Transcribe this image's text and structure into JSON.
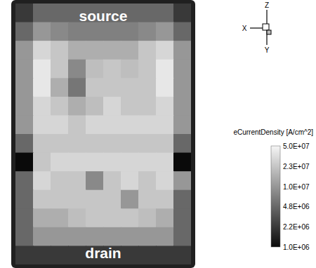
{
  "chart_data": {
    "type": "heatmap",
    "annotations": [
      "source",
      "drain"
    ],
    "axes_triad": [
      "X",
      "Y",
      "Z"
    ],
    "colorbar": {
      "title": "eCurrentDensity [A/cm^2]",
      "range": [
        1000000,
        50000000
      ],
      "ticks": [
        {
          "value": 50000000,
          "label": "5.0E+07"
        },
        {
          "value": 23000000,
          "label": "2.3E+07"
        },
        {
          "value": 10000000,
          "label": "1.0E+07"
        },
        {
          "value": 4800000,
          "label": "4.8E+06"
        },
        {
          "value": 2200000,
          "label": "2.2E+06"
        },
        {
          "value": 1000000,
          "label": "1.0E+06"
        }
      ]
    },
    "cells": [
      [
        2200000,
        4800000,
        4800000,
        4800000,
        4800000,
        4800000,
        4800000,
        4800000,
        4800000,
        2200000
      ],
      [
        4800000,
        10000000,
        8000000,
        7000000,
        7000000,
        7000000,
        7000000,
        8000000,
        10000000,
        4800000
      ],
      [
        10000000,
        30000000,
        23000000,
        15000000,
        15000000,
        15000000,
        15000000,
        23000000,
        30000000,
        10000000
      ],
      [
        10000000,
        40000000,
        23000000,
        8000000,
        20000000,
        23000000,
        20000000,
        23000000,
        40000000,
        10000000
      ],
      [
        10000000,
        40000000,
        15000000,
        6000000,
        23000000,
        23000000,
        23000000,
        23000000,
        40000000,
        10000000
      ],
      [
        10000000,
        30000000,
        23000000,
        15000000,
        20000000,
        30000000,
        23000000,
        23000000,
        30000000,
        10000000
      ],
      [
        10000000,
        30000000,
        30000000,
        23000000,
        30000000,
        30000000,
        30000000,
        30000000,
        30000000,
        10000000
      ],
      [
        4800000,
        23000000,
        23000000,
        23000000,
        23000000,
        23000000,
        23000000,
        23000000,
        23000000,
        4800000
      ],
      [
        1000000,
        23000000,
        30000000,
        30000000,
        30000000,
        30000000,
        30000000,
        30000000,
        30000000,
        1000000
      ],
      [
        4800000,
        30000000,
        23000000,
        23000000,
        8000000,
        23000000,
        30000000,
        23000000,
        30000000,
        10000000
      ],
      [
        4800000,
        23000000,
        23000000,
        23000000,
        23000000,
        23000000,
        10000000,
        23000000,
        23000000,
        4800000
      ],
      [
        4800000,
        15000000,
        15000000,
        20000000,
        23000000,
        23000000,
        23000000,
        20000000,
        15000000,
        4800000
      ],
      [
        4800000,
        10000000,
        10000000,
        10000000,
        10000000,
        10000000,
        10000000,
        10000000,
        10000000,
        4800000
      ],
      [
        2200000,
        2200000,
        2200000,
        2200000,
        2200000,
        2200000,
        2200000,
        2200000,
        2200000,
        2200000
      ]
    ]
  }
}
